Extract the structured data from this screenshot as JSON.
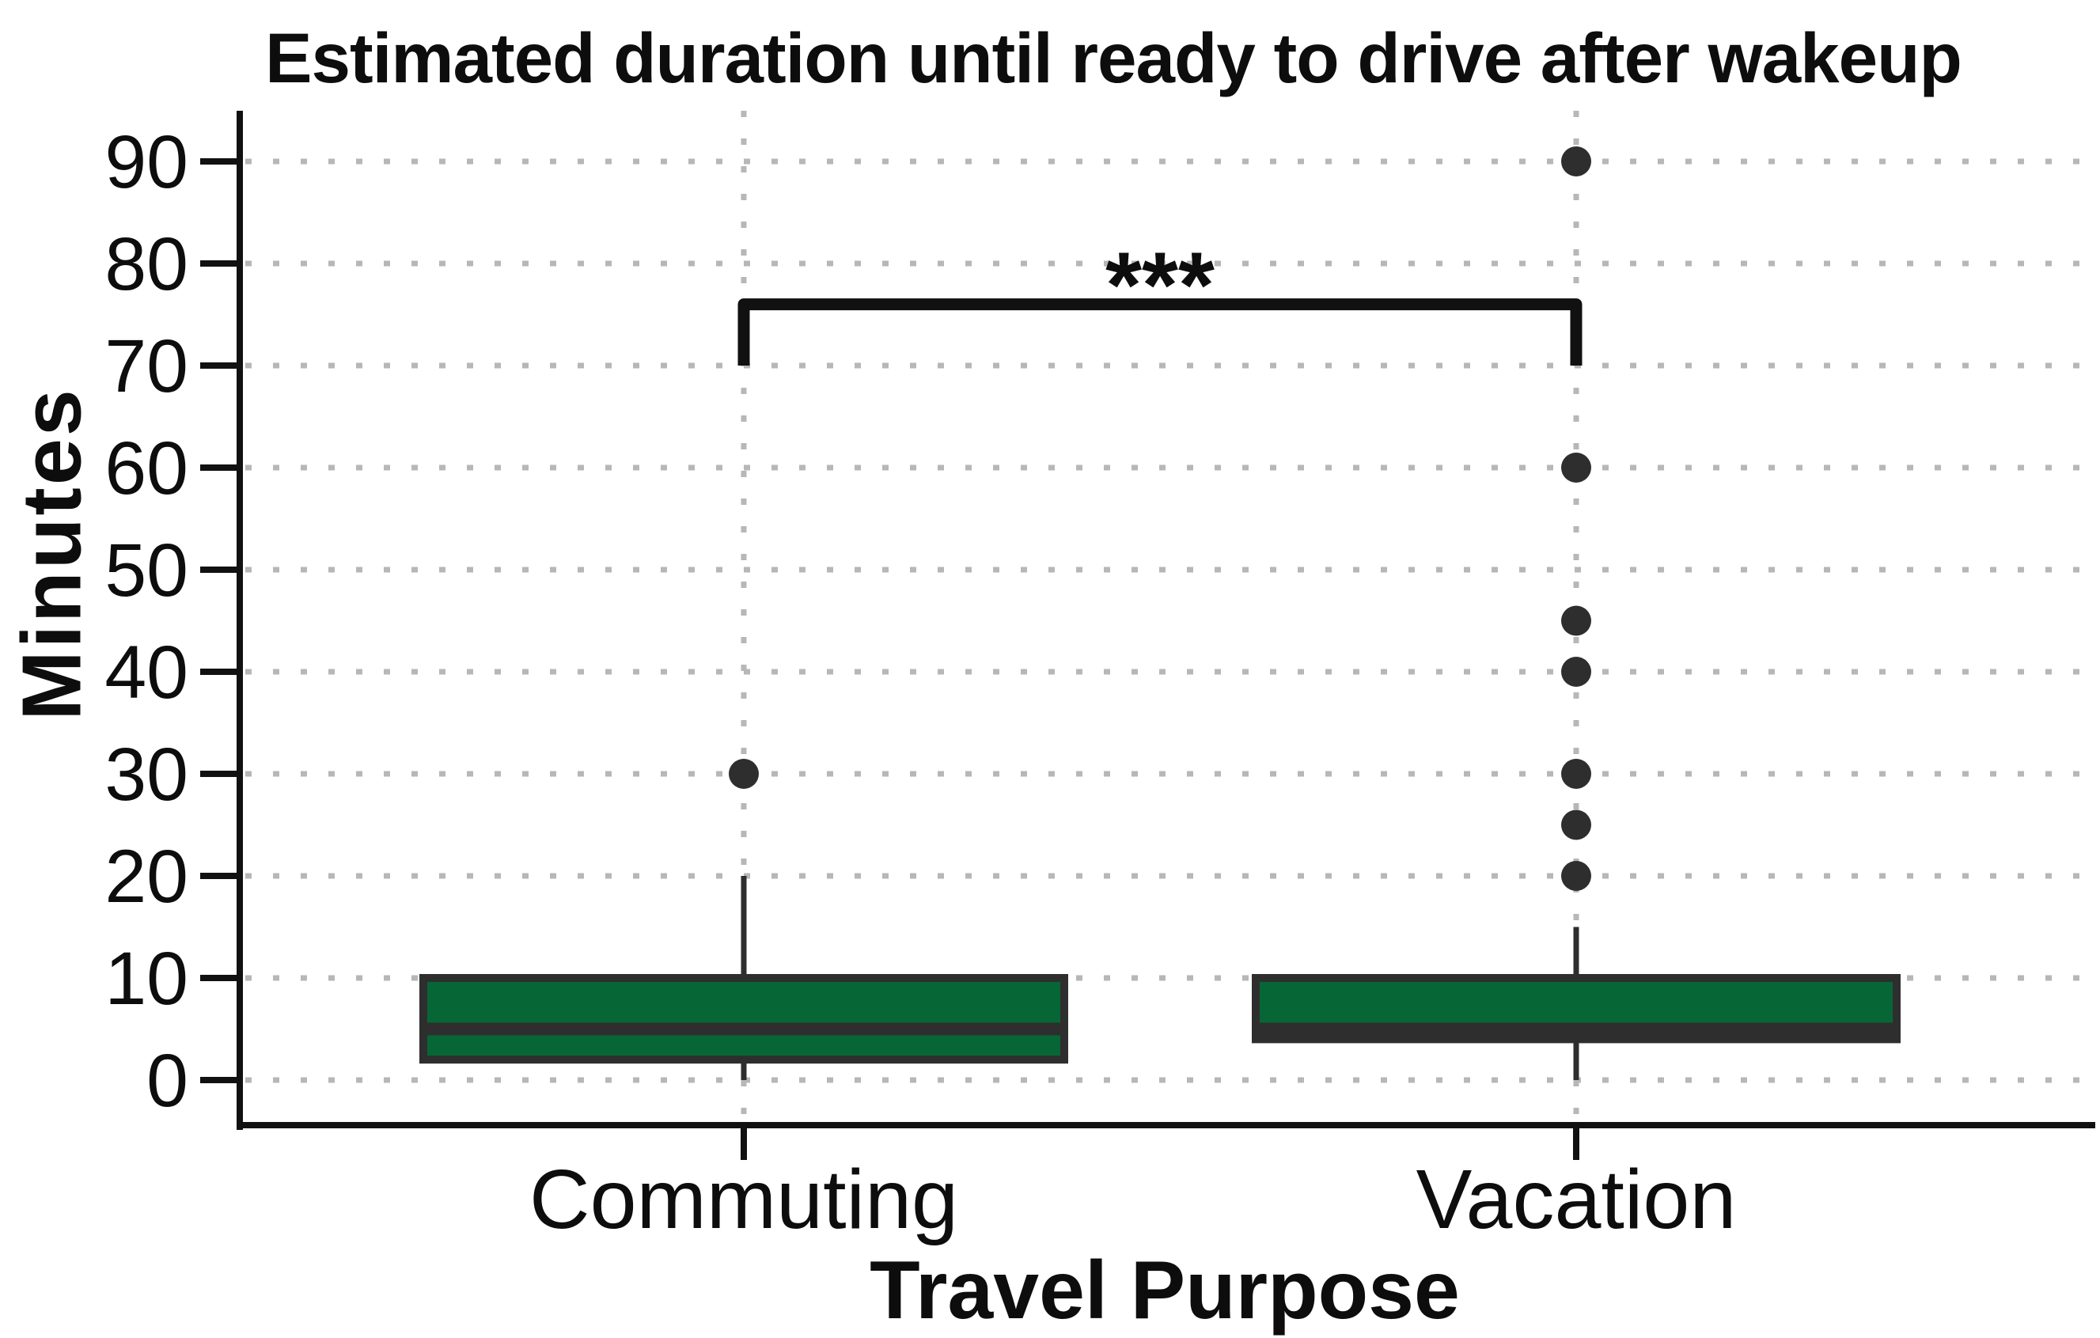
{
  "title": "Estimated duration until ready to drive after wakeup",
  "chart_data": {
    "type": "boxplot",
    "title": "Estimated duration until ready to drive after wakeup",
    "xlabel": "Travel Purpose",
    "ylabel": "Minutes",
    "categories": [
      "Commuting",
      "Vacation"
    ],
    "yticks": [
      0,
      10,
      20,
      30,
      40,
      50,
      60,
      70,
      80,
      90
    ],
    "ylim": [
      -4.5,
      95
    ],
    "grid": {
      "horizontal": "dotted line at every 10 minutes",
      "vertical": "dotted line at each category center",
      "legend": "none"
    },
    "series": [
      {
        "name": "Commuting",
        "whisker_low": 0,
        "q1": 2,
        "median": 5,
        "q3": 10,
        "whisker_high": 20,
        "outliers": [
          30
        ]
      },
      {
        "name": "Vacation",
        "whisker_low": 0,
        "q1": 4,
        "median": 5,
        "q3": 10,
        "whisker_high": 15,
        "outliers": [
          20,
          25,
          30,
          40,
          45,
          60,
          90
        ]
      }
    ],
    "significance": {
      "label": "***",
      "between": [
        "Commuting",
        "Vacation"
      ],
      "bar_value": 76,
      "leg_value": 70
    },
    "colors": {
      "box_fill": "#076635",
      "box_border": "#2e2e2e",
      "outlier": "#2e2e2e",
      "grid": "#b7b7b7",
      "axis": "#111111",
      "bracket": "#111111",
      "text": "#0d0d0d",
      "background": "#ffffff"
    }
  }
}
